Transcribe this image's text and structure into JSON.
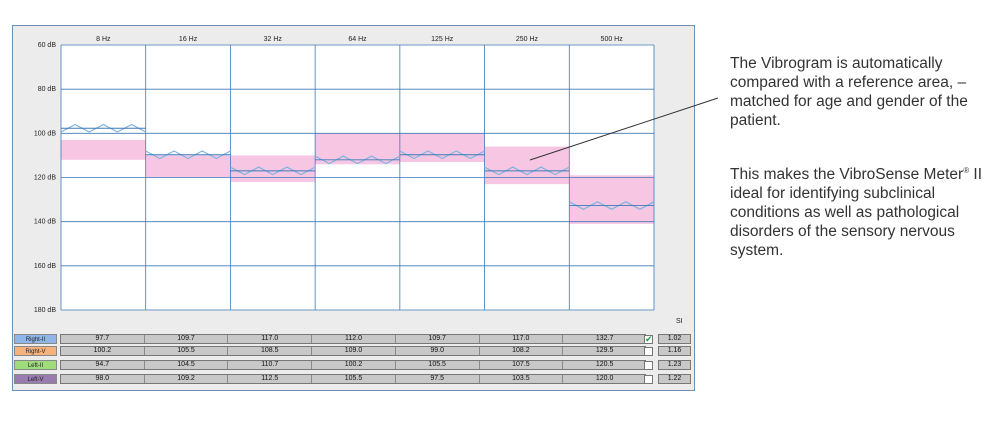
{
  "chart_data": {
    "type": "line",
    "title": "",
    "xlabel": "",
    "ylabel": "",
    "categories": [
      "8 Hz",
      "16 Hz",
      "32 Hz",
      "64 Hz",
      "125 Hz",
      "250 Hz",
      "500 Hz"
    ],
    "y_ticks": [
      "60 dB",
      "80 dB",
      "100 dB",
      "120 dB",
      "140 dB",
      "160 dB",
      "180 dB"
    ],
    "ylim": [
      60,
      180
    ],
    "y_inverted": true,
    "grid": true,
    "reference_area": [
      {
        "low": 103,
        "high": 112
      },
      {
        "low": 110,
        "high": 120
      },
      {
        "low": 110,
        "high": 122
      },
      {
        "low": 100,
        "high": 114
      },
      {
        "low": 100,
        "high": 113
      },
      {
        "low": 106,
        "high": 123
      },
      {
        "low": 119,
        "high": 141
      }
    ],
    "series": [
      {
        "name": "Right-II",
        "values": [
          97.7,
          109.7,
          117.0,
          112.0,
          109.7,
          117.0,
          132.7
        ]
      }
    ],
    "colors": {
      "trace": "#7fb2de",
      "reference": "#f7c6e3",
      "grid": "#3d7ab8"
    }
  },
  "table": {
    "si_header": "SI",
    "rows": [
      {
        "label": "Right-II",
        "color": "#8eb6e8",
        "values": [
          "97.7",
          "109.7",
          "117.0",
          "112.0",
          "109.7",
          "117.0",
          "132.7"
        ],
        "checked": true,
        "si": "1.02"
      },
      {
        "label": "Right-V",
        "color": "#f5b27a",
        "values": [
          "100.2",
          "105.5",
          "108.5",
          "109.0",
          "99.0",
          "108.2",
          "129.5"
        ],
        "checked": false,
        "si": "1.16"
      },
      {
        "label": "Left-II",
        "color": "#9edc7c",
        "values": [
          "94.7",
          "104.5",
          "110.7",
          "100.2",
          "105.5",
          "107.5",
          "120.5"
        ],
        "checked": false,
        "si": "1.23"
      },
      {
        "label": "Left-V",
        "color": "#9a7bb0",
        "values": [
          "98.0",
          "109.2",
          "112.5",
          "105.5",
          "97.5",
          "103.5",
          "120.0"
        ],
        "checked": false,
        "si": "1.22"
      }
    ]
  },
  "caption": {
    "paragraph1": "The Vibrogram is automatically compared with a reference area, – matched for age and gender of the patient.",
    "paragraph2_start": "This makes the VibroSense Meter",
    "registered": "®",
    "paragraph2_end": " II ideal for identifying subclinical conditions as well as pathological disorders of the sensory nervous system."
  }
}
